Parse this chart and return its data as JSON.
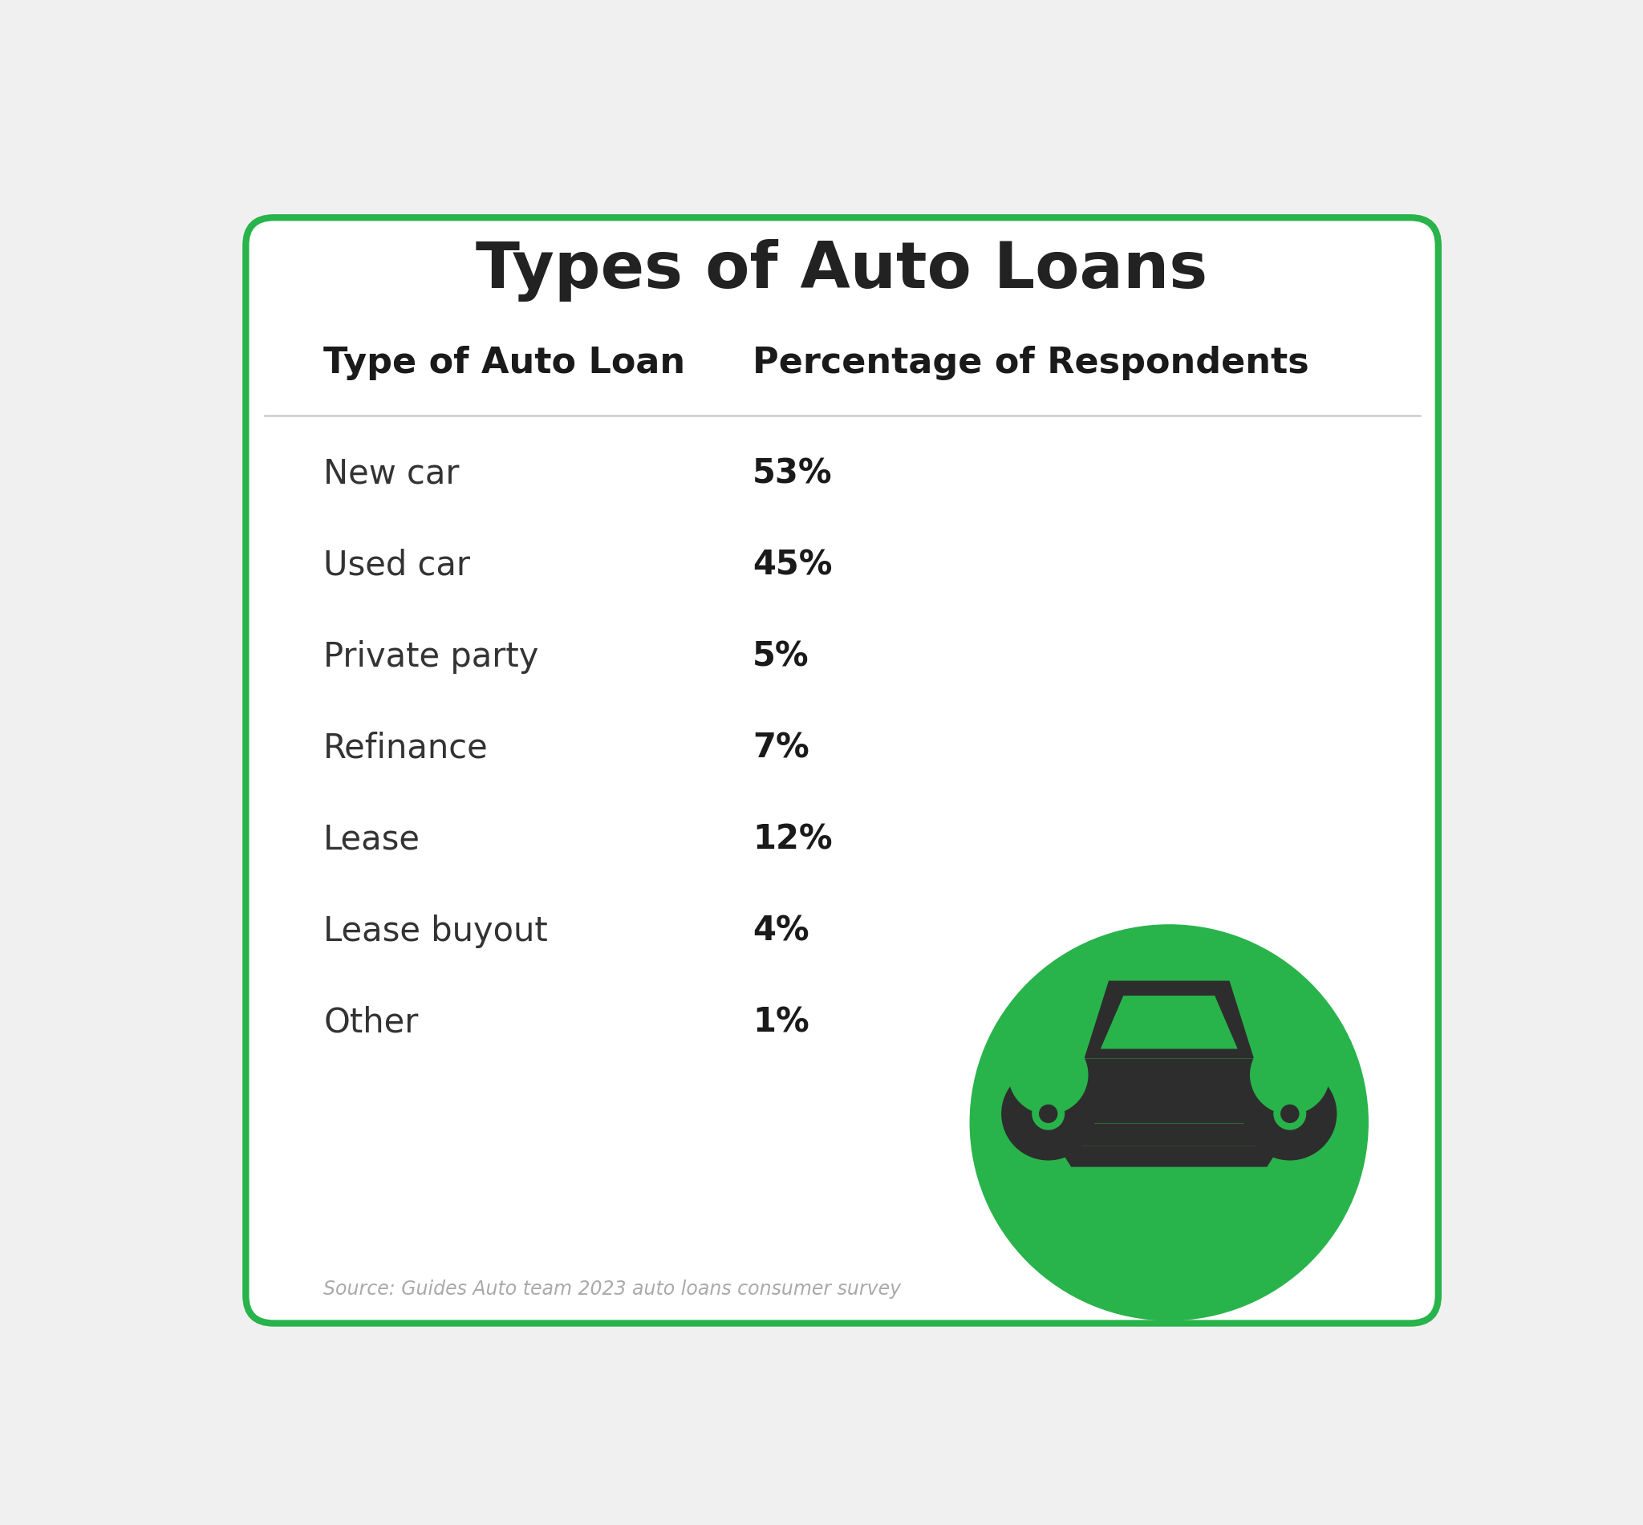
{
  "title": "Types of Auto Loans",
  "col1_header": "Type of Auto Loan",
  "col2_header": "Percentage of Respondents",
  "rows": [
    [
      "New car",
      "53%"
    ],
    [
      "Used car",
      "45%"
    ],
    [
      "Private party",
      "5%"
    ],
    [
      "Refinance",
      "7%"
    ],
    [
      "Lease",
      "12%"
    ],
    [
      "Lease buyout",
      "4%"
    ],
    [
      "Other",
      "1%"
    ]
  ],
  "source": "Source: Guides Auto team 2023 auto loans consumer survey",
  "bg_color": "#ffffff",
  "border_color": "#29b34b",
  "title_color": "#222222",
  "header_color": "#1a1a1a",
  "row_color": "#333333",
  "value_bold_color": "#1a1a1a",
  "separator_color": "#cccccc",
  "source_color": "#aaaaaa",
  "circle_color": "#29b34b",
  "car_color": "#2d2d2d",
  "outer_bg": "#f0f0f0"
}
